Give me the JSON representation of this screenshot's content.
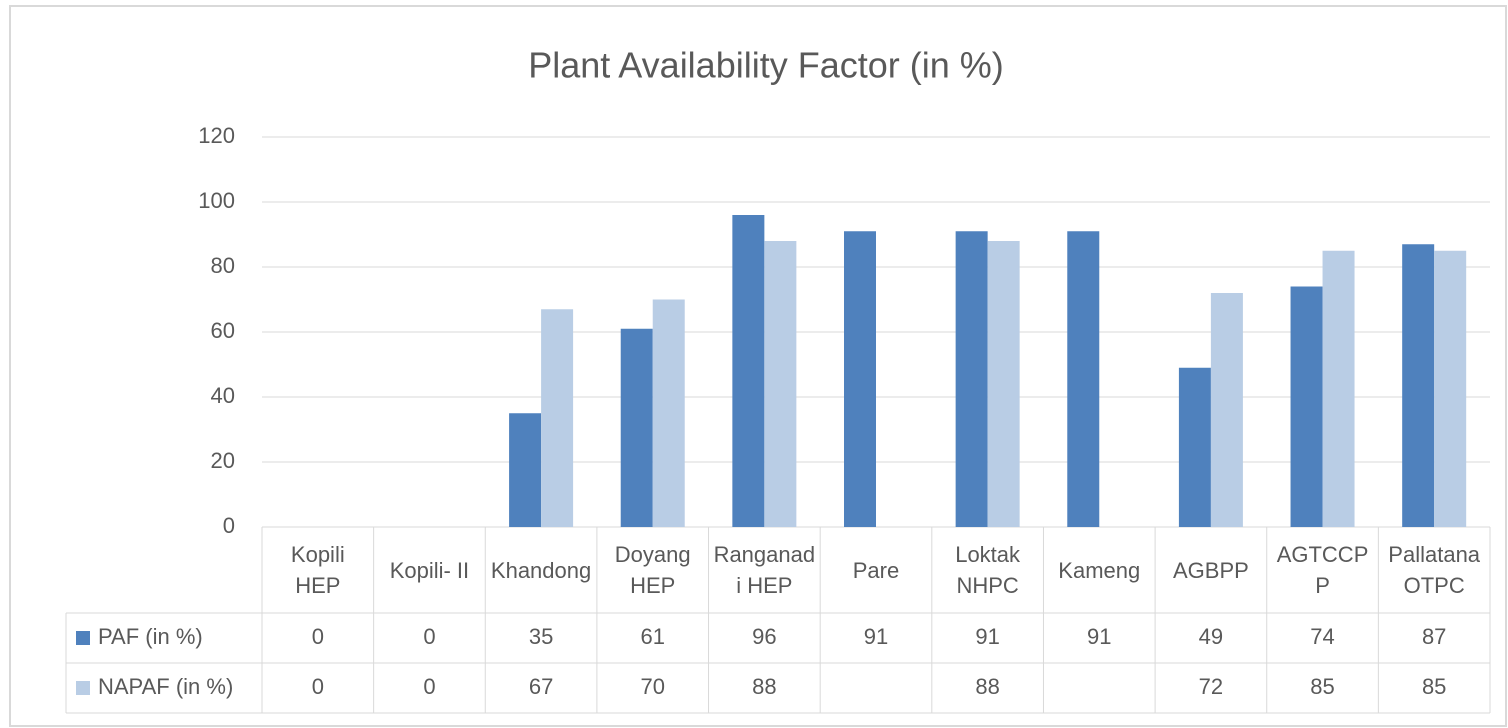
{
  "chart_data": {
    "type": "bar",
    "title": "Plant Availability Factor (in %)",
    "categories": [
      "Kopili HEP",
      "Kopili- II",
      "Khandong",
      "Doyang HEP",
      "Ranganadi HEP",
      "Pare",
      "Loktak NHPC",
      "Kameng",
      "AGBPP",
      "AGTCCPP",
      "Pallatana OTPC"
    ],
    "series": [
      {
        "name": "PAF (in %)",
        "color": "#4f81bd",
        "values": [
          0,
          0,
          35,
          61,
          96,
          91,
          91,
          91,
          49,
          74,
          87
        ]
      },
      {
        "name": "NAPAF (in %)",
        "color": "#b9cde5",
        "values": [
          0,
          0,
          67,
          70,
          88,
          null,
          88,
          null,
          72,
          85,
          85
        ]
      }
    ],
    "ylim": [
      0,
      120
    ],
    "yticks": [
      0,
      20,
      40,
      60,
      80,
      100,
      120
    ],
    "grid": true
  }
}
